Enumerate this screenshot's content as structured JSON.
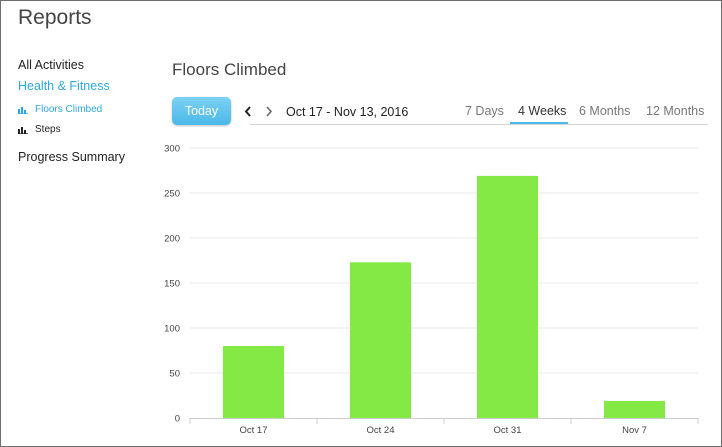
{
  "app": {
    "title": "Reports"
  },
  "sidebar": {
    "all_activities": "All Activities",
    "health_fitness": "Health & Fitness",
    "floors_climbed": "Floors Climbed",
    "steps": "Steps",
    "progress_summary": "Progress Summary"
  },
  "main": {
    "title": "Floors Climbed",
    "today_label": "Today",
    "date_range": "Oct 17 - Nov 13, 2016",
    "tabs": [
      {
        "label": "7 Days",
        "active": false
      },
      {
        "label": "4 Weeks",
        "active": true
      },
      {
        "label": "6 Months",
        "active": false
      },
      {
        "label": "12 Months",
        "active": false
      }
    ]
  },
  "colors": {
    "accent": "#4ab8e8",
    "bar": "#84e944",
    "sidebar_active": "#2ea7e0"
  },
  "icons": {
    "prev": "chevron-left-icon",
    "next": "chevron-right-icon",
    "chart_item": "bar-chart-icon"
  },
  "chart_data": {
    "type": "bar",
    "categories": [
      "Oct 17",
      "Oct 24",
      "Oct 31",
      "Nov 7"
    ],
    "values": [
      80,
      173,
      269,
      19
    ],
    "title": "",
    "xlabel": "",
    "ylabel": "",
    "ylim": [
      0,
      300
    ],
    "yticks": [
      0,
      50,
      100,
      150,
      200,
      250,
      300
    ],
    "grid": true
  }
}
